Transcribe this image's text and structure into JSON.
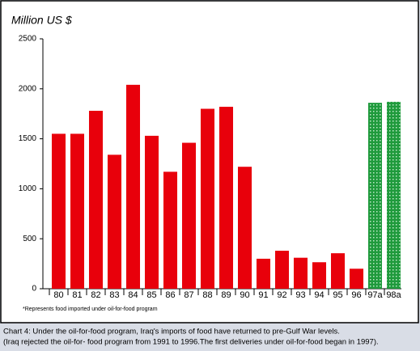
{
  "chart_data": {
    "type": "bar",
    "y_label": "Million US $",
    "categories": [
      "80",
      "81",
      "82",
      "83",
      "84",
      "85",
      "86",
      "87",
      "88",
      "89",
      "90",
      "91",
      "92",
      "93",
      "94",
      "95",
      "96",
      "97a",
      "98a"
    ],
    "values": [
      1550,
      1550,
      1780,
      1340,
      2040,
      1530,
      1170,
      1460,
      1800,
      1820,
      1220,
      300,
      380,
      310,
      265,
      355,
      200,
      1860,
      1870
    ],
    "colors": [
      "#e8000b",
      "#e8000b",
      "#e8000b",
      "#e8000b",
      "#e8000b",
      "#e8000b",
      "#e8000b",
      "#e8000b",
      "#e8000b",
      "#e8000b",
      "#e8000b",
      "#e8000b",
      "#e8000b",
      "#e8000b",
      "#e8000b",
      "#e8000b",
      "#e8000b",
      "#1f9a3c",
      "#1f9a3c"
    ],
    "ylim": [
      0,
      2500
    ],
    "yticks": [
      0,
      500,
      1000,
      1500,
      2000,
      2500
    ],
    "footnote": "*Represents food imported under oil-for-food program",
    "caption": [
      "Chart 4: Under the oil-for-food program, Iraq's imports of food have returned to pre-Gulf War levels.",
      "(Iraq rejected the oil-for- food program from 1991 to 1996.The first deliveries under oil-for-food began in 1997)."
    ]
  }
}
